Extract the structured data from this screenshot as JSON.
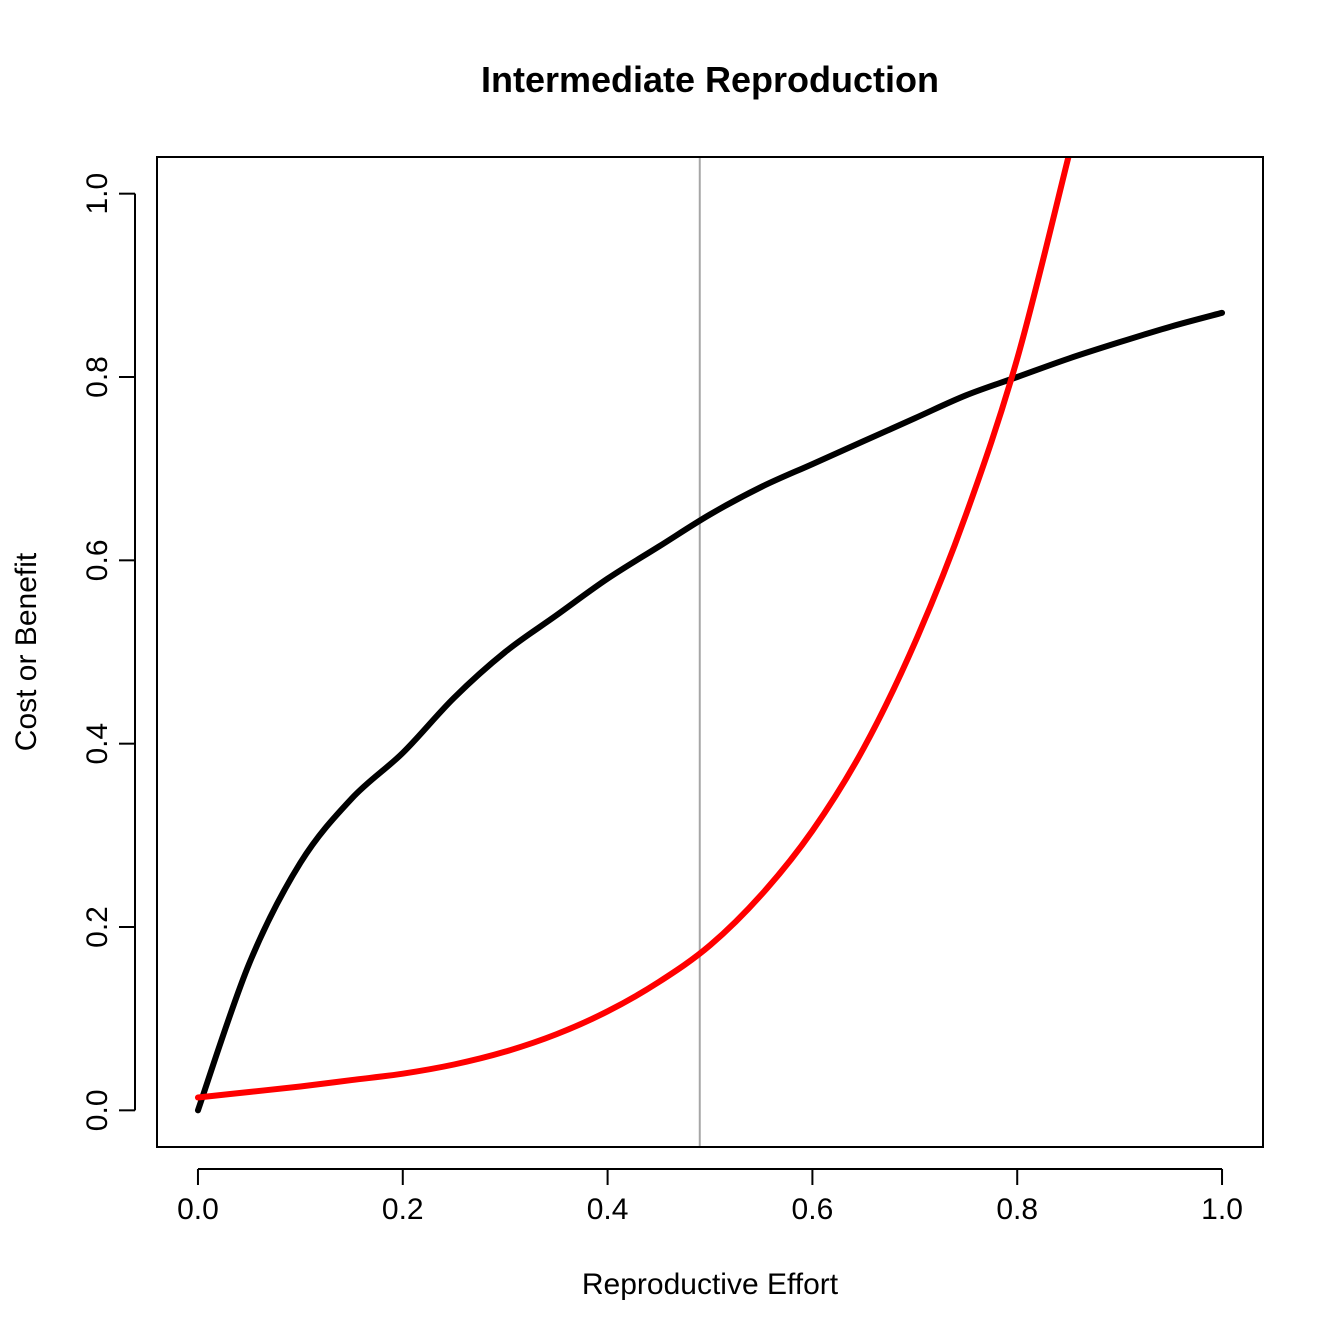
{
  "chart_data": {
    "type": "line",
    "title": "Intermediate Reproduction",
    "xlabel": "Reproductive Effort",
    "ylabel": "Cost or Benefit",
    "xlim": [
      -0.04,
      1.04
    ],
    "ylim": [
      -0.04,
      1.04
    ],
    "x_ticks": [
      "0.0",
      "0.2",
      "0.4",
      "0.6",
      "0.8",
      "1.0"
    ],
    "y_ticks": [
      "0.0",
      "0.2",
      "0.4",
      "0.6",
      "0.8",
      "1.0"
    ],
    "grid": false,
    "legend": "none",
    "vline": {
      "x": 0.49,
      "color": "#a6a6a6"
    },
    "series": [
      {
        "color": "#000000",
        "x": [
          0,
          0.05,
          0.1,
          0.15,
          0.2,
          0.25,
          0.3,
          0.35,
          0.4,
          0.45,
          0.5,
          0.55,
          0.6,
          0.65,
          0.7,
          0.75,
          0.8,
          0.85,
          0.9,
          0.95,
          1.0
        ],
        "y": [
          0,
          0.16,
          0.27,
          0.34,
          0.39,
          0.45,
          0.5,
          0.54,
          0.58,
          0.615,
          0.65,
          0.68,
          0.705,
          0.73,
          0.755,
          0.78,
          0.8,
          0.82,
          0.838,
          0.855,
          0.87
        ]
      },
      {
        "color": "#ff0000",
        "x": [
          0,
          0.05,
          0.1,
          0.15,
          0.2,
          0.25,
          0.3,
          0.35,
          0.4,
          0.45,
          0.5,
          0.55,
          0.6,
          0.65,
          0.7,
          0.75,
          0.8,
          0.85
        ],
        "y": [
          0.014,
          0.02,
          0.026,
          0.033,
          0.04,
          0.05,
          0.064,
          0.083,
          0.108,
          0.14,
          0.18,
          0.235,
          0.305,
          0.395,
          0.51,
          0.65,
          0.82,
          1.04
        ]
      }
    ]
  }
}
